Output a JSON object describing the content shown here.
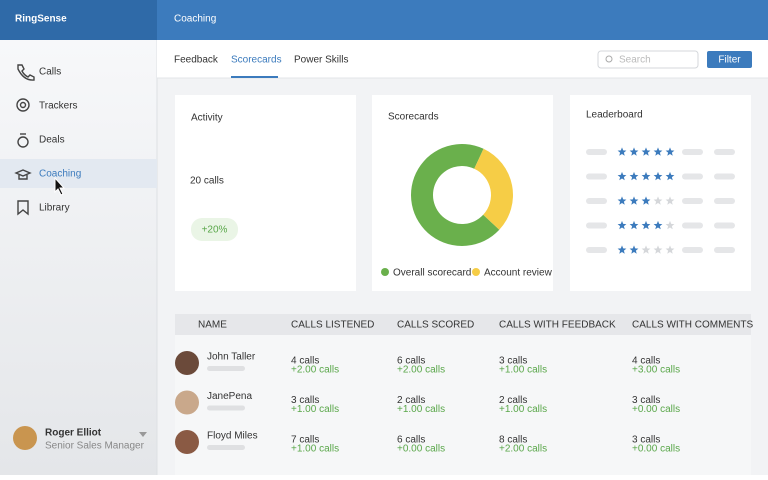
{
  "app": {
    "logo": "RingSense",
    "page_title": "Coaching"
  },
  "nav": [
    {
      "label": "Calls"
    },
    {
      "label": "Trackers"
    },
    {
      "label": "Deals"
    },
    {
      "label": "Coaching",
      "active": true
    },
    {
      "label": "Library"
    }
  ],
  "user": {
    "name": "Roger Elliot",
    "role": "Senior Sales Manager"
  },
  "tabs": [
    {
      "label": "Feedback"
    },
    {
      "label": "Scorecards",
      "active": true
    },
    {
      "label": "Power Skills"
    }
  ],
  "search_placeholder": "Search",
  "filter_button": "Filter",
  "activity": {
    "title": "Activity",
    "value": "20 calls",
    "change": "+20%"
  },
  "scorecards": {
    "title": "Scorecards",
    "series": [
      {
        "name": "Overall scorecard",
        "color": "#6ab04c",
        "value": 70
      },
      {
        "name": "Account review",
        "color": "#f6cd46",
        "value": 30
      }
    ]
  },
  "leaderboard": {
    "title": "Leaderboard",
    "max_stars": 5,
    "ratings": [
      5,
      5,
      3,
      4,
      2
    ]
  },
  "table": {
    "columns": [
      "NAME",
      "CALLS LISTENED",
      "CALLS SCORED",
      "CALLS WITH FEEDBACK",
      "CALLS WITH COMMENTS"
    ],
    "rows": [
      {
        "name": "John Taller",
        "cells": [
          {
            "value": "4 calls",
            "change": "+2.00 calls"
          },
          {
            "value": "6 calls",
            "change": "+2.00 calls"
          },
          {
            "value": "3 calls",
            "change": "+1.00 calls"
          },
          {
            "value": "4 calls",
            "change": "+3.00 calls"
          }
        ]
      },
      {
        "name": "JanePena",
        "cells": [
          {
            "value": "3 calls",
            "change": "+1.00 calls"
          },
          {
            "value": "2 calls",
            "change": "+1.00 calls"
          },
          {
            "value": "2 calls",
            "change": "+1.00 calls"
          },
          {
            "value": "3 calls",
            "change": "+0.00 calls"
          }
        ]
      },
      {
        "name": "Floyd Miles",
        "cells": [
          {
            "value": "7 calls",
            "change": "+1.00 calls"
          },
          {
            "value": "6 calls",
            "change": "+0.00 calls"
          },
          {
            "value": "8 calls",
            "change": "+2.00 calls"
          },
          {
            "value": "3 calls",
            "change": "+0.00 calls"
          }
        ]
      }
    ]
  }
}
